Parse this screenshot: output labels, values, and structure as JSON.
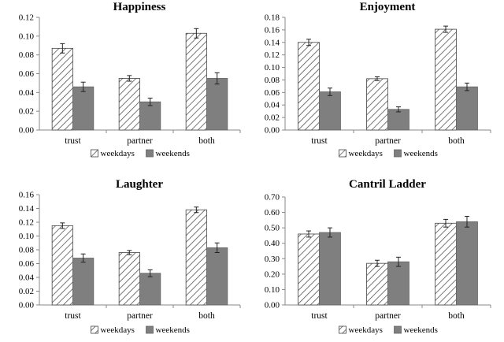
{
  "colors": {
    "weekdays_fill": "#ffffff",
    "weekdays_hatch": "#555555",
    "weekends_fill": "#7f7f7f",
    "axis": "#888888",
    "error_bar": "#222222"
  },
  "chart_data": [
    {
      "type": "bar",
      "title": "Happiness",
      "categories": [
        "trust",
        "partner",
        "both"
      ],
      "series": [
        {
          "name": "weekdays",
          "values": [
            0.087,
            0.055,
            0.103
          ],
          "errors": [
            0.005,
            0.003,
            0.005
          ]
        },
        {
          "name": "weekends",
          "values": [
            0.046,
            0.03,
            0.055
          ],
          "errors": [
            0.005,
            0.004,
            0.006
          ]
        }
      ],
      "ylim": [
        0,
        0.12
      ],
      "yticks": [
        "0.00",
        "0.02",
        "0.04",
        "0.06",
        "0.08",
        "0.10",
        "0.12"
      ],
      "xlabel": "",
      "ylabel": "",
      "grid": false,
      "legend": "bottom"
    },
    {
      "type": "bar",
      "title": "Enjoyment",
      "categories": [
        "trust",
        "partner",
        "both"
      ],
      "series": [
        {
          "name": "weekdays",
          "values": [
            0.14,
            0.082,
            0.161
          ],
          "errors": [
            0.005,
            0.003,
            0.005
          ]
        },
        {
          "name": "weekends",
          "values": [
            0.061,
            0.033,
            0.069
          ],
          "errors": [
            0.006,
            0.004,
            0.006
          ]
        }
      ],
      "ylim": [
        0,
        0.18
      ],
      "yticks": [
        "0.00",
        "0.02",
        "0.04",
        "0.06",
        "0.08",
        "0.10",
        "0.12",
        "0.14",
        "0.16",
        "0.18"
      ],
      "xlabel": "",
      "ylabel": "",
      "grid": false,
      "legend": "bottom"
    },
    {
      "type": "bar",
      "title": "Laughter",
      "categories": [
        "trust",
        "partner",
        "both"
      ],
      "series": [
        {
          "name": "weekdays",
          "values": [
            0.115,
            0.076,
            0.138
          ],
          "errors": [
            0.004,
            0.003,
            0.004
          ]
        },
        {
          "name": "weekends",
          "values": [
            0.068,
            0.046,
            0.083
          ],
          "errors": [
            0.006,
            0.005,
            0.007
          ]
        }
      ],
      "ylim": [
        0,
        0.16
      ],
      "yticks": [
        "0.00",
        "0.02",
        "0.04",
        "0.06",
        "0.08",
        "0.10",
        "0.12",
        "0.14",
        "0.16"
      ],
      "xlabel": "",
      "ylabel": "",
      "grid": false,
      "legend": "bottom"
    },
    {
      "type": "bar",
      "title": "Cantril Ladder",
      "categories": [
        "trust",
        "partner",
        "both"
      ],
      "series": [
        {
          "name": "weekdays",
          "values": [
            0.46,
            0.27,
            0.53
          ],
          "errors": [
            0.02,
            0.02,
            0.025
          ]
        },
        {
          "name": "weekends",
          "values": [
            0.47,
            0.28,
            0.54
          ],
          "errors": [
            0.03,
            0.03,
            0.035
          ]
        }
      ],
      "ylim": [
        0,
        0.7
      ],
      "yticks": [
        "0.00",
        "0.10",
        "0.20",
        "0.30",
        "0.40",
        "0.50",
        "0.60",
        "0.70"
      ],
      "xlabel": "",
      "ylabel": "",
      "grid": false,
      "legend": "bottom"
    }
  ]
}
